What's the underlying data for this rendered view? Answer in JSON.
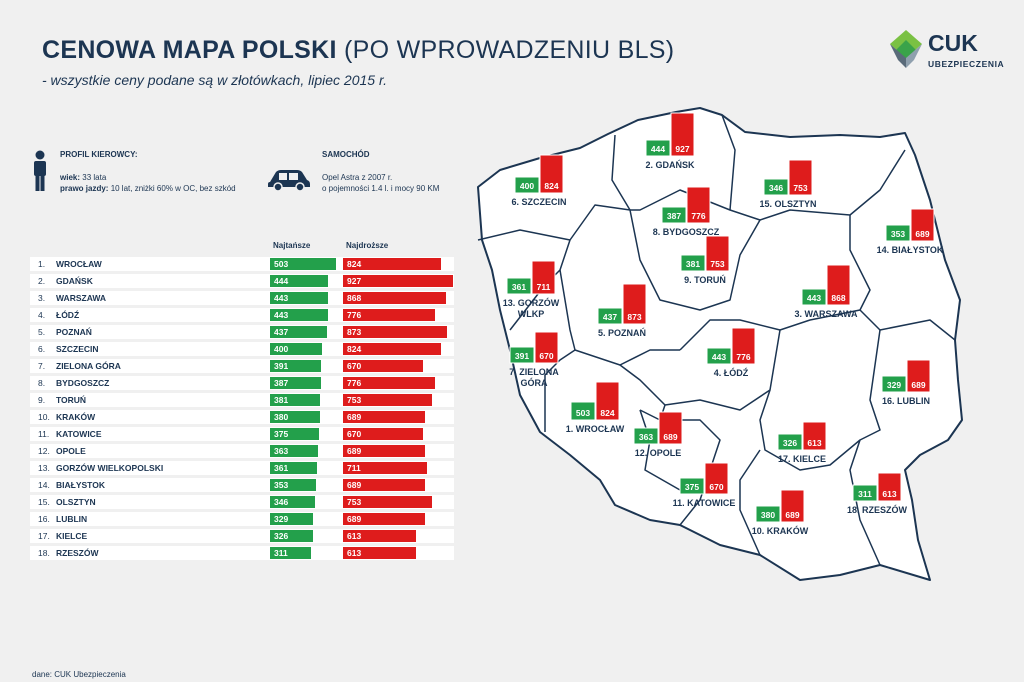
{
  "header": {
    "title_bold": "CENOWA MAPA POLSKI",
    "title_light": "(PO WPROWADZENIU BLS)",
    "subtitle": "- wszystkie ceny podane są w złotówkach, lipiec 2015 r."
  },
  "logo": {
    "name": "CUK",
    "sub": "UBEZPIECZENIA"
  },
  "driver": {
    "heading": "PROFIL KIEROWCY:",
    "age_label": "wiek:",
    "age_value": "33 lata",
    "license_label": "prawo jazdy:",
    "license_value": "10 lat, zniżki 60% w OC, bez szkód"
  },
  "car": {
    "heading": "SAMOCHÓD",
    "line1": "Opel Astra z 2007 r.",
    "line2": "o pojemności 1.4 l. i mocy 90 KM"
  },
  "table_headers": {
    "cheapest": "Najtańsze",
    "most_expensive": "Najdroższe"
  },
  "chart_data": {
    "type": "bar",
    "title": "CENOWA MAPA POLSKI (PO WPROWADZENIU BLS)",
    "rows": [
      {
        "rank": "1.",
        "city": "WROCŁAW",
        "min": 503,
        "max": 824
      },
      {
        "rank": "2.",
        "city": "GDAŃSK",
        "min": 444,
        "max": 927
      },
      {
        "rank": "3.",
        "city": "WARSZAWA",
        "min": 443,
        "max": 868
      },
      {
        "rank": "4.",
        "city": "ŁÓDŹ",
        "min": 443,
        "max": 776
      },
      {
        "rank": "5.",
        "city": "POZNAŃ",
        "min": 437,
        "max": 873
      },
      {
        "rank": "6.",
        "city": "SZCZECIN",
        "min": 400,
        "max": 824
      },
      {
        "rank": "7.",
        "city": "ZIELONA GÓRA",
        "min": 391,
        "max": 670
      },
      {
        "rank": "8.",
        "city": "BYDGOSZCZ",
        "min": 387,
        "max": 776
      },
      {
        "rank": "9.",
        "city": "TORUŃ",
        "min": 381,
        "max": 753
      },
      {
        "rank": "10.",
        "city": "KRAKÓW",
        "min": 380,
        "max": 689
      },
      {
        "rank": "11.",
        "city": "KATOWICE",
        "min": 375,
        "max": 670
      },
      {
        "rank": "12.",
        "city": "OPOLE",
        "min": 363,
        "max": 689
      },
      {
        "rank": "13.",
        "city": "GORZÓW WIELKOPOLSKI",
        "min": 361,
        "max": 711
      },
      {
        "rank": "14.",
        "city": "BIAŁYSTOK",
        "min": 353,
        "max": 689
      },
      {
        "rank": "15.",
        "city": "OLSZTYN",
        "min": 346,
        "max": 753
      },
      {
        "rank": "16.",
        "city": "LUBLIN",
        "min": 329,
        "max": 689
      },
      {
        "rank": "17.",
        "city": "KIELCE",
        "min": 326,
        "max": 613
      },
      {
        "rank": "18.",
        "city": "RZESZÓW",
        "min": 311,
        "max": 613
      }
    ],
    "map_labels": [
      {
        "text": "1. WROCŁAW",
        "min": 503,
        "max": 824
      },
      {
        "text": "2. GDAŃSK",
        "min": 444,
        "max": 927
      },
      {
        "text": "3. WARSZAWA",
        "min": 443,
        "max": 868
      },
      {
        "text": "4. ŁÓDŹ",
        "min": 443,
        "max": 776
      },
      {
        "text": "5. POZNAŃ",
        "min": 437,
        "max": 873
      },
      {
        "text": "6. SZCZECIN",
        "min": 400,
        "max": 824
      },
      {
        "text": "7. ZIELONA",
        "text2": "GÓRA",
        "min": 391,
        "max": 670
      },
      {
        "text": "8. BYDGOSZCZ",
        "min": 387,
        "max": 776
      },
      {
        "text": "9. TORUŃ",
        "min": 381,
        "max": 753
      },
      {
        "text": "10. KRAKÓW",
        "min": 380,
        "max": 689
      },
      {
        "text": "11. KATOWICE",
        "min": 375,
        "max": 670
      },
      {
        "text": "12. OPOLE",
        "min": 363,
        "max": 689
      },
      {
        "text": "13. GORZÓW",
        "text2": "WLKP",
        "min": 361,
        "max": 711
      },
      {
        "text": "14. BIAŁYSTOK",
        "min": 353,
        "max": 689
      },
      {
        "text": "15. OLSZTYN",
        "min": 346,
        "max": 753
      },
      {
        "text": "16. LUBLIN",
        "min": 329,
        "max": 689
      },
      {
        "text": "17. KIELCE",
        "min": 326,
        "max": 613
      },
      {
        "text": "18. RZESZÓW",
        "min": 311,
        "max": 613
      }
    ],
    "colors": {
      "min": "#23a04b",
      "max": "#de1c1c",
      "text": "#1c3552"
    }
  },
  "footer": "dane: CUK Ubezpieczenia"
}
